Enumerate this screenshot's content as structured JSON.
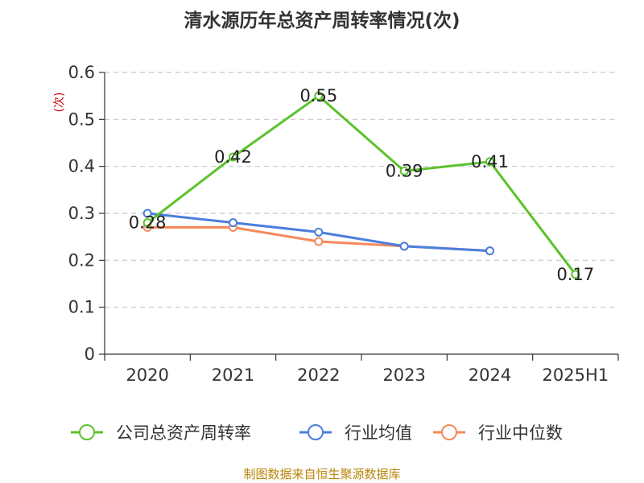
{
  "chart_data": {
    "type": "line",
    "title": "清水源历年总资产周转率情况(次)",
    "ylabel": "(次)",
    "xlabel": "",
    "categories": [
      "2020",
      "2021",
      "2022",
      "2023",
      "2024",
      "2025H1"
    ],
    "ylim": [
      0,
      0.6
    ],
    "yticks": [
      "0",
      "0.1",
      "0.2",
      "0.3",
      "0.4",
      "0.5",
      "0.6"
    ],
    "grid": true,
    "legend_position": "bottom",
    "series": [
      {
        "name": "公司总资产周转率",
        "color": "#5cc22b",
        "values": [
          0.28,
          0.42,
          0.55,
          0.39,
          0.41,
          0.17
        ],
        "labels": [
          "0.28",
          "0.42",
          "0.55",
          "0.39",
          "0.41",
          "0.17"
        ]
      },
      {
        "name": "行业均值",
        "color": "#4a7fdc",
        "values": [
          0.3,
          0.28,
          0.26,
          0.23,
          0.22,
          null
        ]
      },
      {
        "name": "行业中位数",
        "color": "#f5895b",
        "values": [
          0.27,
          0.27,
          0.24,
          0.23,
          0.22,
          null
        ]
      }
    ]
  },
  "source": "制图数据来自恒生聚源数据库"
}
